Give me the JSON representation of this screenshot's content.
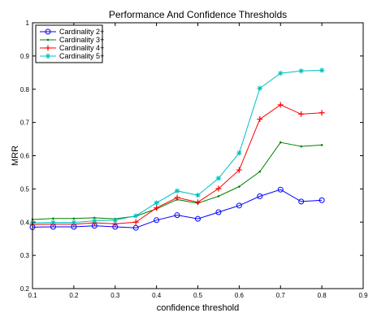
{
  "chart_data": {
    "type": "line",
    "title": "Performance And Confidence Thresholds",
    "xlabel": "confidence threshold",
    "ylabel": "MRR",
    "xlim": [
      0.1,
      0.9
    ],
    "ylim": [
      0.2,
      1.0
    ],
    "xticks": [
      "0.1",
      "0.2",
      "0.3",
      "0.4",
      "0.5",
      "0.6",
      "0.7",
      "0.8",
      "0.9"
    ],
    "yticks": [
      "0.2",
      "0.3",
      "0.4",
      "0.5",
      "0.6",
      "0.7",
      "0.8",
      "0.9",
      "1"
    ],
    "grid": false,
    "legend_position": "top-left",
    "x": [
      0.1,
      0.15,
      0.2,
      0.25,
      0.3,
      0.35,
      0.4,
      0.45,
      0.5,
      0.55,
      0.6,
      0.65,
      0.7,
      0.75,
      0.8
    ],
    "series": [
      {
        "name": "Cardinality 2+",
        "color": "#0000ff",
        "marker": "circle",
        "values": [
          0.385,
          0.386,
          0.386,
          0.389,
          0.386,
          0.383,
          0.406,
          0.421,
          0.41,
          0.43,
          0.45,
          0.478,
          0.498,
          0.462,
          0.466
        ]
      },
      {
        "name": "Cardinality 3+",
        "color": "#008000",
        "marker": "point",
        "values": [
          0.408,
          0.411,
          0.411,
          0.413,
          0.41,
          0.418,
          0.44,
          0.468,
          0.457,
          0.478,
          0.507,
          0.552,
          0.64,
          0.628,
          0.632
        ]
      },
      {
        "name": "Cardinality 4+",
        "color": "#ff0000",
        "marker": "plus",
        "values": [
          0.393,
          0.394,
          0.394,
          0.398,
          0.395,
          0.4,
          0.443,
          0.474,
          0.46,
          0.501,
          0.557,
          0.71,
          0.753,
          0.725,
          0.729
        ]
      },
      {
        "name": "Cardinality 5+",
        "color": "#00bfbf",
        "marker": "star",
        "values": [
          0.398,
          0.399,
          0.399,
          0.404,
          0.406,
          0.419,
          0.458,
          0.494,
          0.481,
          0.532,
          0.608,
          0.803,
          0.848,
          0.855,
          0.857
        ]
      }
    ]
  }
}
